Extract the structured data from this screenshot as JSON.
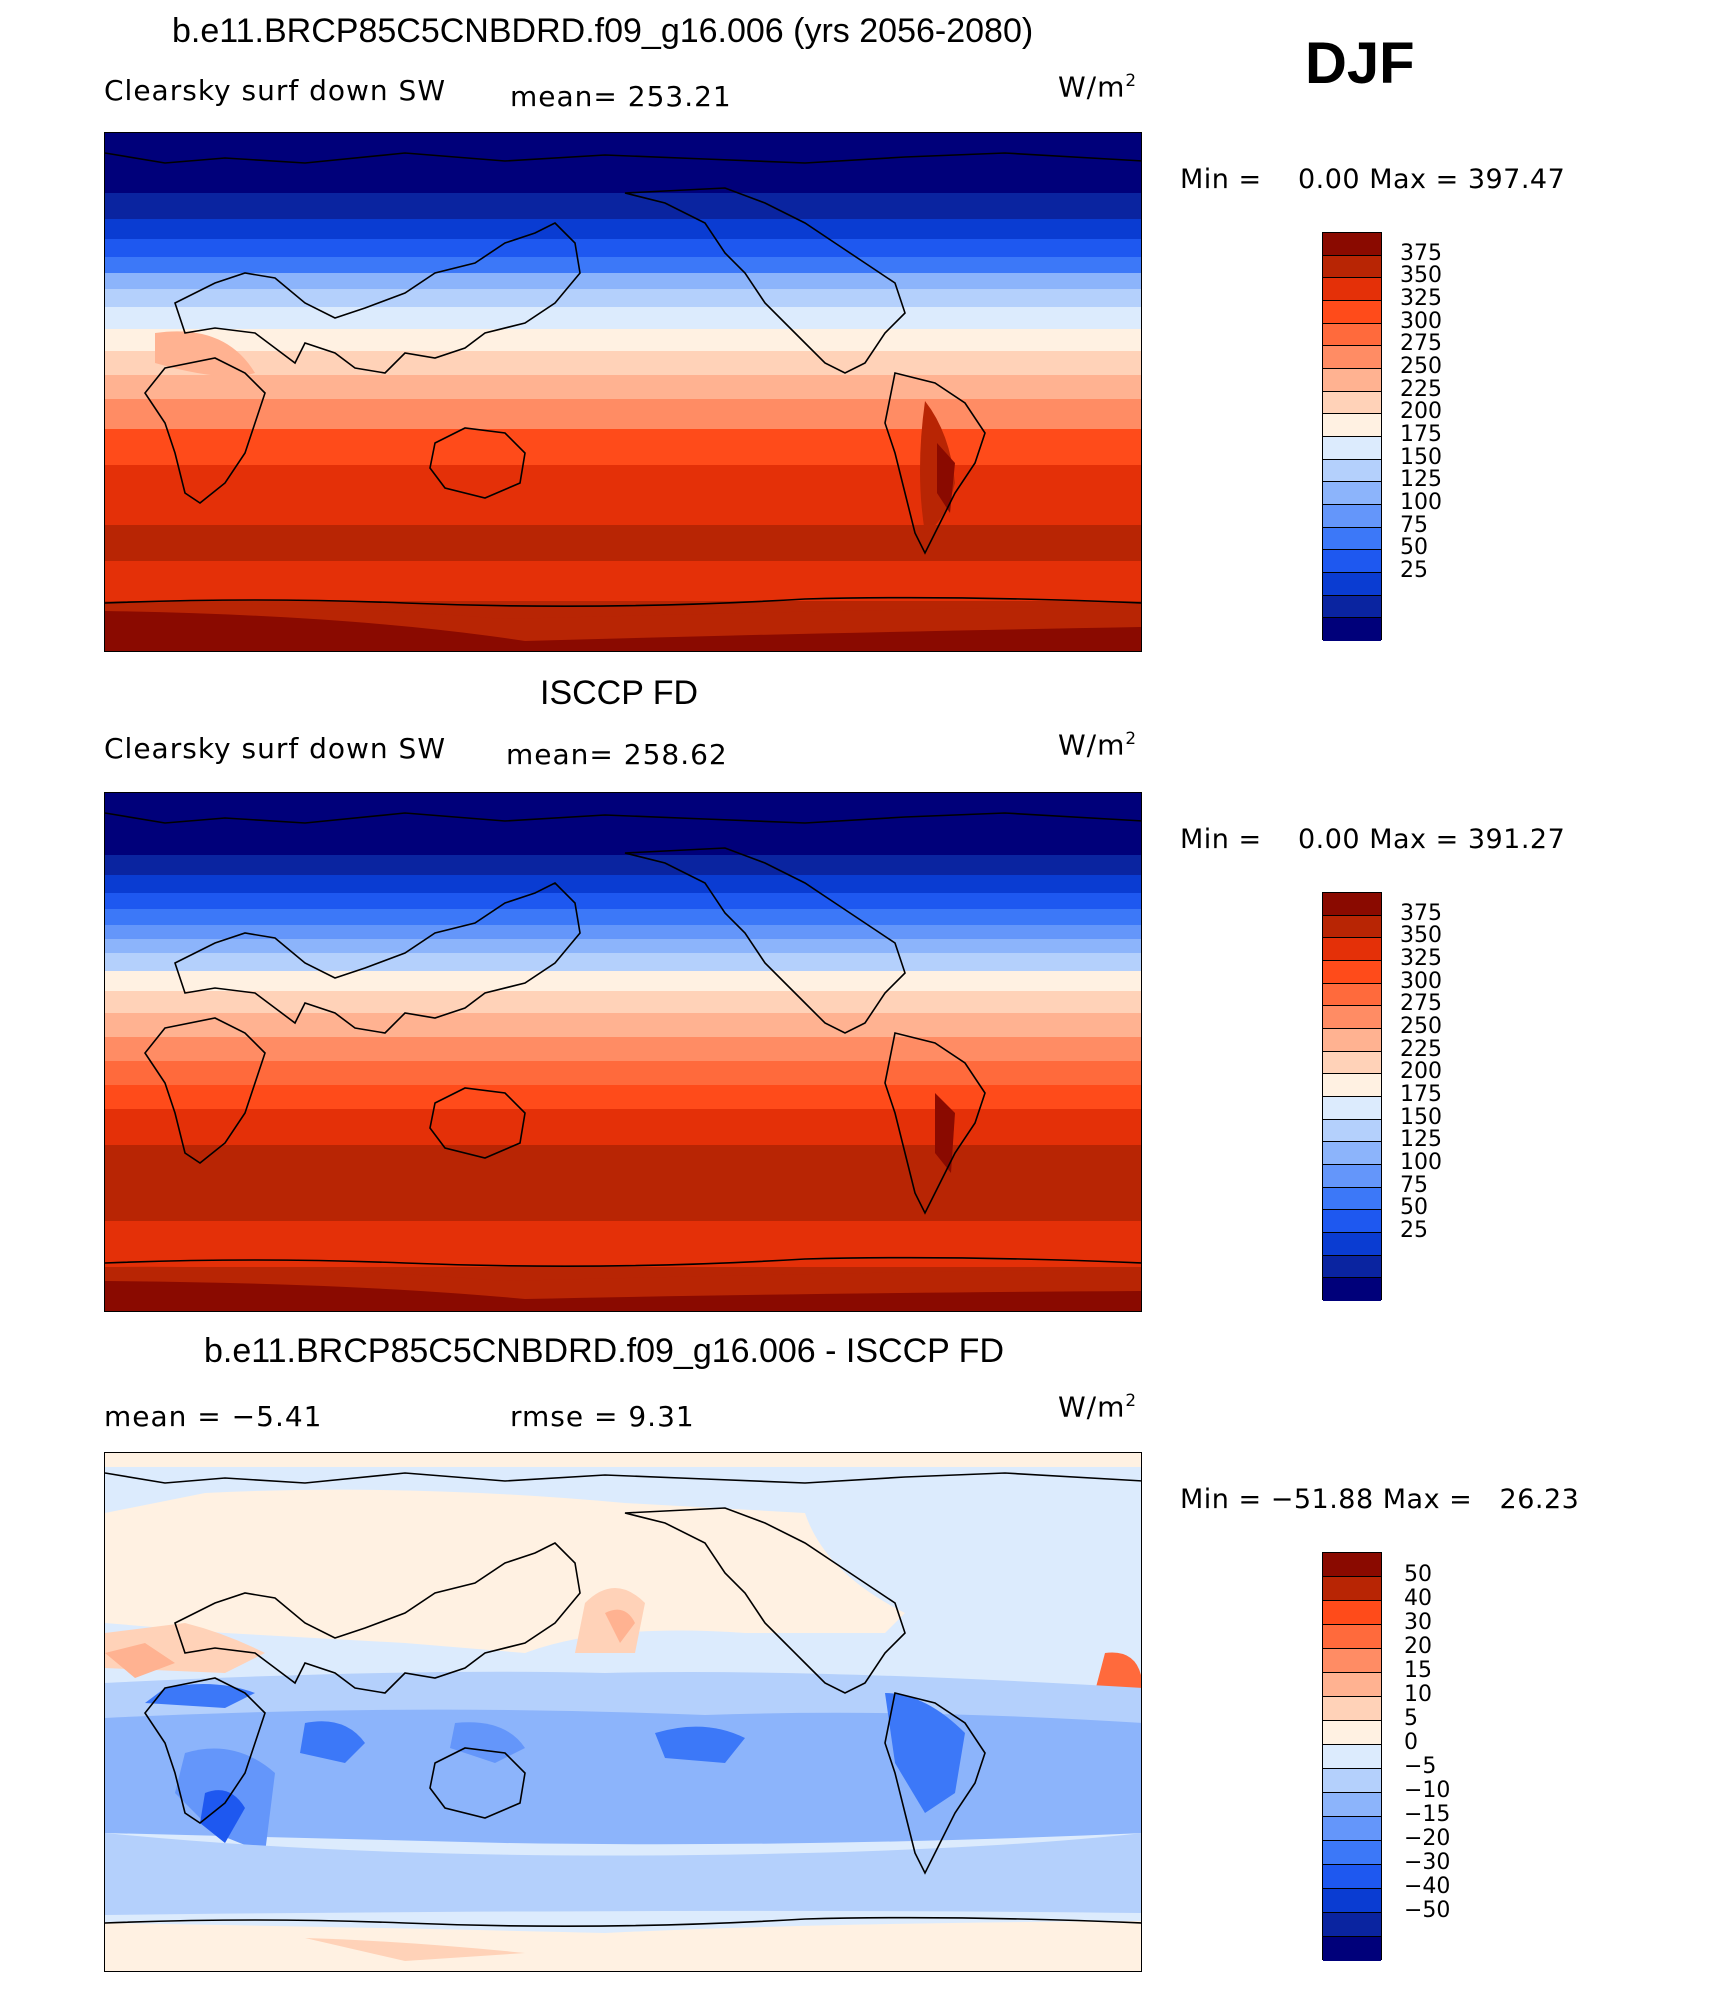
{
  "season": "DJF",
  "colors": {
    "abs": [
      "#00007a",
      "#0a24a0",
      "#0a3cd2",
      "#1e58f0",
      "#3c78f8",
      "#6496fa",
      "#8cb4fb",
      "#b4d0fc",
      "#dcebfd",
      "#fff1e2",
      "#ffd2b8",
      "#ffb291",
      "#ff8c64",
      "#ff6a3c",
      "#ff4b1a",
      "#e43008",
      "#b82504",
      "#8a0a00"
    ],
    "diff": [
      "#00007a",
      "#0a24a0",
      "#0a3cd2",
      "#1e58f0",
      "#3c78f8",
      "#6496fa",
      "#8cb4fb",
      "#b4d0fc",
      "#dcebfd",
      "#fff1e2",
      "#ffd2b8",
      "#ffb291",
      "#ff8c64",
      "#ff6a3c",
      "#ff4b1a",
      "#b82504",
      "#8a0a00"
    ]
  },
  "panels": [
    {
      "id": "model",
      "title": "b.e11.BRCP85C5CNBDRD.f09_g16.006 (yrs 2056-2080)",
      "left_label": "Clearsky surf down SW",
      "stat_label": "mean= 253.21",
      "unit": "W/m",
      "unit_sup": "2",
      "min_label": "Min =",
      "min_value": "0.00",
      "max_label": "Max =",
      "max_value": "397.47",
      "colorbar_labels": [
        "375",
        "350",
        "325",
        "300",
        "275",
        "250",
        "225",
        "200",
        "175",
        "150",
        "125",
        "100",
        "75",
        "50",
        "25"
      ]
    },
    {
      "id": "obs",
      "title": "ISCCP FD",
      "left_label": "Clearsky surf down SW",
      "stat_label": "mean= 258.62",
      "unit": "W/m",
      "unit_sup": "2",
      "min_label": "Min =",
      "min_value": "0.00",
      "max_label": "Max =",
      "max_value": "391.27",
      "colorbar_labels": [
        "375",
        "350",
        "325",
        "300",
        "275",
        "250",
        "225",
        "200",
        "175",
        "150",
        "125",
        "100",
        "75",
        "50",
        "25"
      ]
    },
    {
      "id": "diff",
      "title": "b.e11.BRCP85C5CNBDRD.f09_g16.006 - ISCCP FD",
      "left_label": "mean =   −5.41",
      "stat_label": "rmse =     9.31",
      "unit": "W/m",
      "unit_sup": "2",
      "min_label": "Min =",
      "min_value": "−51.88",
      "max_label": "Max =",
      "max_value": "26.23",
      "colorbar_labels": [
        "50",
        "40",
        "30",
        "20",
        "15",
        "10",
        "5",
        "0",
        "−5",
        "−10",
        "−15",
        "−20",
        "−30",
        "−40",
        "−50"
      ]
    }
  ]
}
